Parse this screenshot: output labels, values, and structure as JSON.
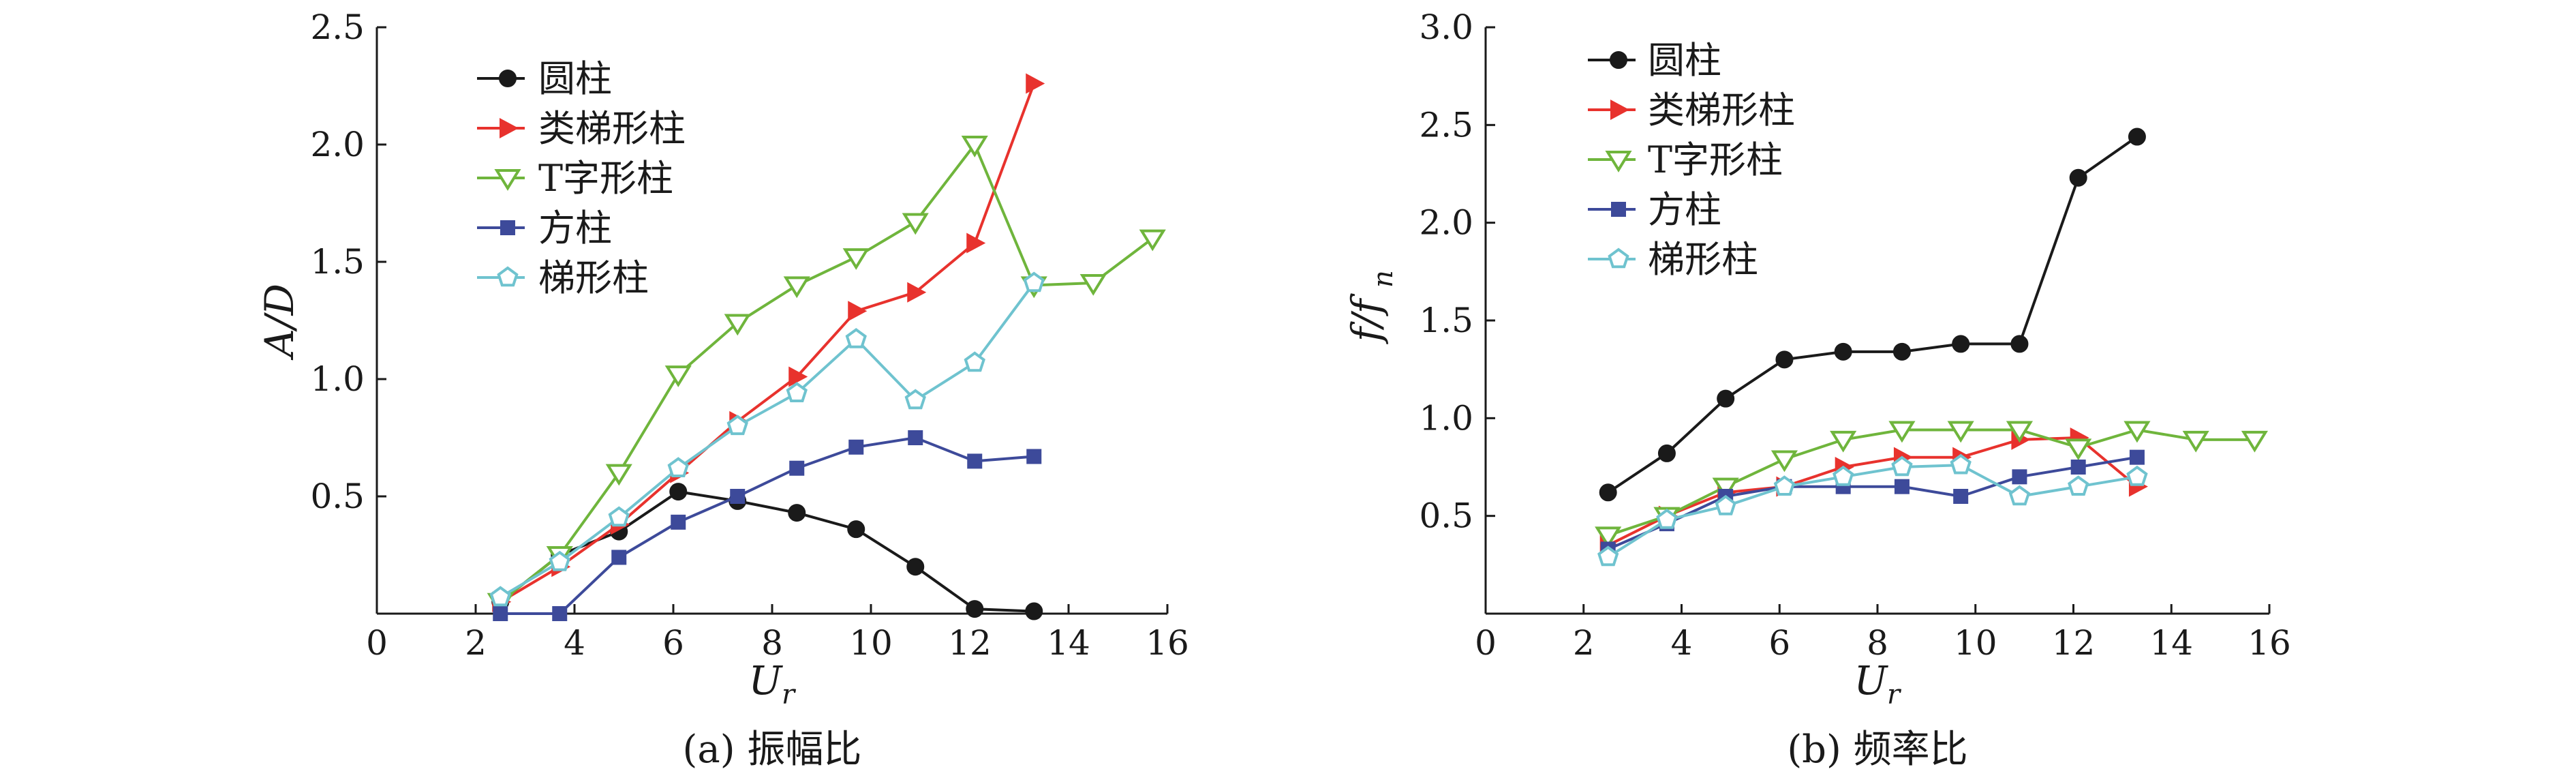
{
  "chart_data": [
    {
      "type": "line",
      "title": "",
      "caption": "(a) 振幅比",
      "xlabel": "U",
      "xlabel_sub": "r",
      "ylabel": "A/D",
      "xlim": [
        0,
        16
      ],
      "ylim": [
        0,
        2.5
      ],
      "xticks": [
        "0",
        "2",
        "4",
        "6",
        "8",
        "10",
        "12",
        "14",
        "16"
      ],
      "yticks": [
        "0.5",
        "1.0",
        "1.5",
        "2.0",
        "2.5"
      ],
      "legend_position": "top-left",
      "series": [
        {
          "name": "圆柱",
          "color": "#1a1a1a",
          "marker": "circle",
          "x": [
            2.5,
            3.7,
            4.9,
            6.1,
            7.3,
            8.5,
            9.7,
            10.9,
            12.1,
            13.3
          ],
          "y": [
            0.05,
            0.25,
            0.35,
            0.52,
            0.48,
            0.43,
            0.36,
            0.2,
            0.02,
            0.01
          ]
        },
        {
          "name": "类梯形柱",
          "color": "#e8322d",
          "marker": "triangle-right",
          "x": [
            2.5,
            3.7,
            4.9,
            6.1,
            7.3,
            8.5,
            9.7,
            10.9,
            12.1,
            13.3
          ],
          "y": [
            0.05,
            0.2,
            0.38,
            0.6,
            0.82,
            1.01,
            1.29,
            1.37,
            1.58,
            2.26
          ]
        },
        {
          "name": "T字形柱",
          "color": "#6fb53c",
          "marker": "triangle-down",
          "x": [
            2.5,
            3.7,
            4.9,
            6.1,
            7.3,
            8.5,
            9.7,
            10.9,
            12.1,
            13.3,
            14.5,
            15.7
          ],
          "y": [
            0.05,
            0.25,
            0.6,
            1.02,
            1.24,
            1.4,
            1.52,
            1.67,
            2.0,
            1.4,
            1.41,
            1.6
          ]
        },
        {
          "name": "方柱",
          "color": "#3d4a9a",
          "marker": "square",
          "x": [
            2.5,
            3.7,
            4.9,
            6.1,
            7.3,
            8.5,
            9.7,
            10.9,
            12.1,
            13.3
          ],
          "y": [
            0.0,
            0.0,
            0.24,
            0.39,
            0.5,
            0.62,
            0.71,
            0.75,
            0.65,
            0.67
          ]
        },
        {
          "name": "梯形柱",
          "color": "#6fc3cf",
          "marker": "pentagon",
          "x": [
            2.5,
            3.7,
            4.9,
            6.1,
            7.3,
            8.5,
            9.7,
            10.9,
            12.1,
            13.3
          ],
          "y": [
            0.07,
            0.22,
            0.41,
            0.62,
            0.8,
            0.94,
            1.17,
            0.91,
            1.07,
            1.41
          ]
        }
      ]
    },
    {
      "type": "line",
      "title": "",
      "caption": "(b) 频率比",
      "xlabel": "U",
      "xlabel_sub": "r",
      "ylabel": "f/f",
      "ylabel_sub": "n",
      "xlim": [
        0,
        16
      ],
      "ylim": [
        0,
        3.0
      ],
      "xticks": [
        "0",
        "2",
        "4",
        "6",
        "8",
        "10",
        "12",
        "14",
        "16"
      ],
      "yticks": [
        "0.5",
        "1.0",
        "1.5",
        "2.0",
        "2.5",
        "3.0"
      ],
      "legend_position": "top-left",
      "series": [
        {
          "name": "圆柱",
          "color": "#1a1a1a",
          "marker": "circle",
          "x": [
            2.5,
            3.7,
            4.9,
            6.1,
            7.3,
            8.5,
            9.7,
            10.9,
            12.1,
            13.3
          ],
          "y": [
            0.62,
            0.82,
            1.1,
            1.3,
            1.34,
            1.34,
            1.38,
            1.38,
            2.23,
            2.44
          ]
        },
        {
          "name": "类梯形柱",
          "color": "#e8322d",
          "marker": "triangle-right",
          "x": [
            2.5,
            3.7,
            4.9,
            6.1,
            7.3,
            8.5,
            9.7,
            10.9,
            12.1,
            13.3
          ],
          "y": [
            0.35,
            0.5,
            0.62,
            0.65,
            0.75,
            0.8,
            0.8,
            0.89,
            0.9,
            0.65
          ]
        },
        {
          "name": "T字形柱",
          "color": "#6fb53c",
          "marker": "triangle-down",
          "x": [
            2.5,
            3.7,
            4.9,
            6.1,
            7.3,
            8.5,
            9.7,
            10.9,
            12.1,
            13.3,
            14.5,
            15.7
          ],
          "y": [
            0.4,
            0.5,
            0.65,
            0.79,
            0.89,
            0.94,
            0.94,
            0.94,
            0.85,
            0.94,
            0.89,
            0.89
          ]
        },
        {
          "name": "方柱",
          "color": "#3d4a9a",
          "marker": "square",
          "x": [
            2.5,
            3.7,
            4.9,
            6.1,
            7.3,
            8.5,
            9.7,
            10.9,
            12.1,
            13.3
          ],
          "y": [
            0.33,
            0.46,
            0.6,
            0.65,
            0.65,
            0.65,
            0.6,
            0.7,
            0.75,
            0.8
          ]
        },
        {
          "name": "梯形柱",
          "color": "#6fc3cf",
          "marker": "pentagon",
          "x": [
            2.5,
            3.7,
            4.9,
            6.1,
            7.3,
            8.5,
            9.7,
            10.9,
            12.1,
            13.3
          ],
          "y": [
            0.29,
            0.48,
            0.55,
            0.65,
            0.7,
            0.75,
            0.76,
            0.6,
            0.65,
            0.7
          ]
        }
      ]
    }
  ]
}
